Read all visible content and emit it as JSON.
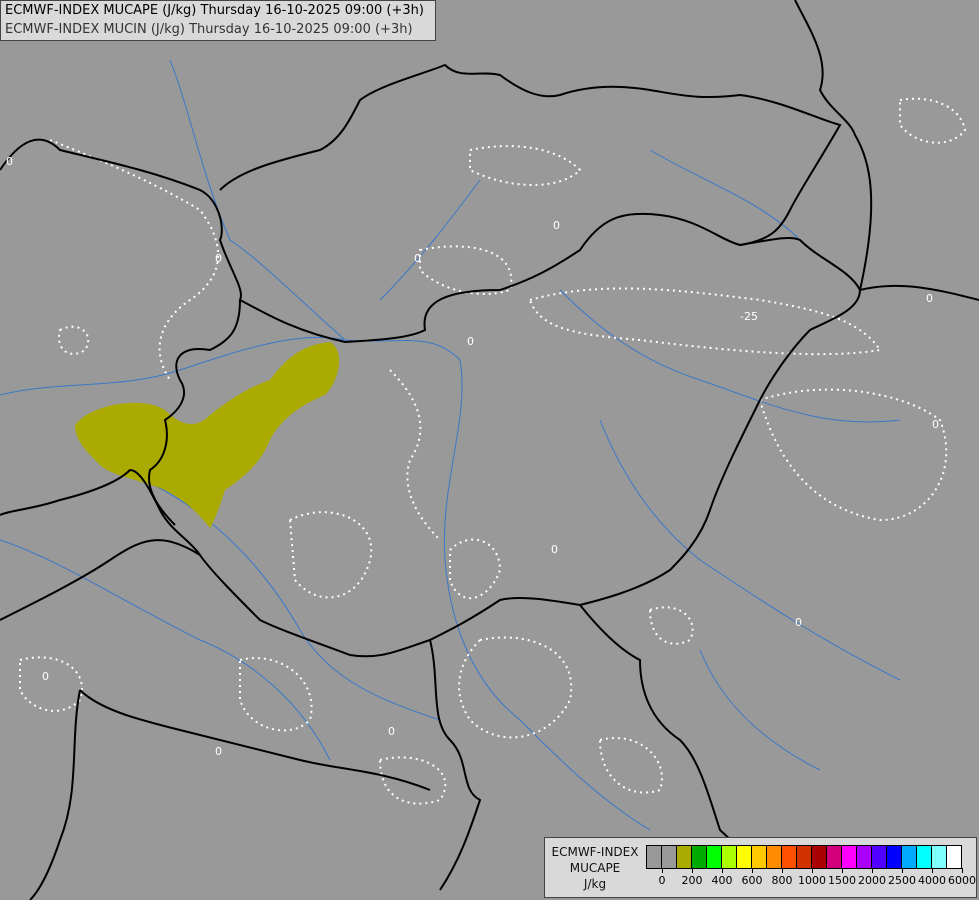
{
  "title": {
    "line1": "ECMWF-INDEX MUCAPE (J/kg) Thursday 16-10-2025 09:00 (+3h)",
    "line2": "ECMWF-INDEX MUCIN (J/kg) Thursday 16-10-2025 09:00 (+3h)"
  },
  "map": {
    "background": "#999999",
    "border_color": "#000000",
    "river_color": "#3a78c8",
    "cin_contour_color": "#ffffff",
    "cape_fill_color": "#aaaa00",
    "contour_labels": [
      "0",
      "0",
      "0",
      "0",
      "0",
      "0",
      "0",
      "0",
      "-25",
      "0",
      "0",
      "0",
      "0"
    ]
  },
  "legend": {
    "name_lines": [
      "ECMWF-INDEX",
      "MUCAPE",
      "J/kg"
    ],
    "colors": [
      "#999999",
      "#999999",
      "#aaaa00",
      "#00aa00",
      "#00ff00",
      "#aaff00",
      "#ffff00",
      "#ffc800",
      "#ff8c00",
      "#ff5000",
      "#d23200",
      "#aa0000",
      "#d2007d",
      "#ff00ff",
      "#aa00ff",
      "#5000ff",
      "#0000ff",
      "#00aaff",
      "#00ffff",
      "#80ffff",
      "#ffffff"
    ],
    "tick_labels": [
      "0",
      "200",
      "400",
      "600",
      "800",
      "1000",
      "1500",
      "2000",
      "2500",
      "4000",
      "6000"
    ]
  }
}
